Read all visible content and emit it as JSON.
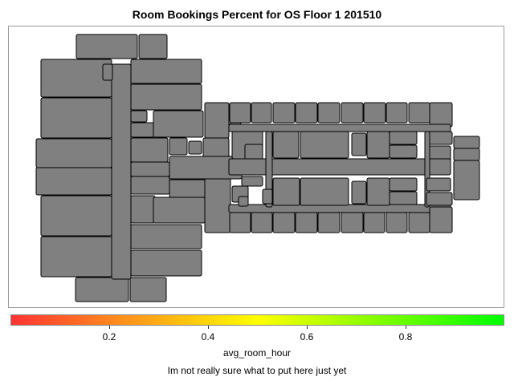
{
  "title": "Room Bookings Percent for OS Floor 1 201510",
  "map": {
    "room_fill": "#808080",
    "room_stroke": "#000000"
  },
  "legend": {
    "label": "avg_room_hour",
    "min": 0,
    "max": 1,
    "ticks": [
      {
        "value": 0.2,
        "label": "0.2"
      },
      {
        "value": 0.4,
        "label": "0.4"
      },
      {
        "value": 0.6,
        "label": "0.6"
      },
      {
        "value": 0.8,
        "label": "0.8"
      }
    ],
    "colors": [
      "#ff3333",
      "#ffff00",
      "#00ff00"
    ]
  },
  "footnote": "Im not really sure what to put here just yet"
}
